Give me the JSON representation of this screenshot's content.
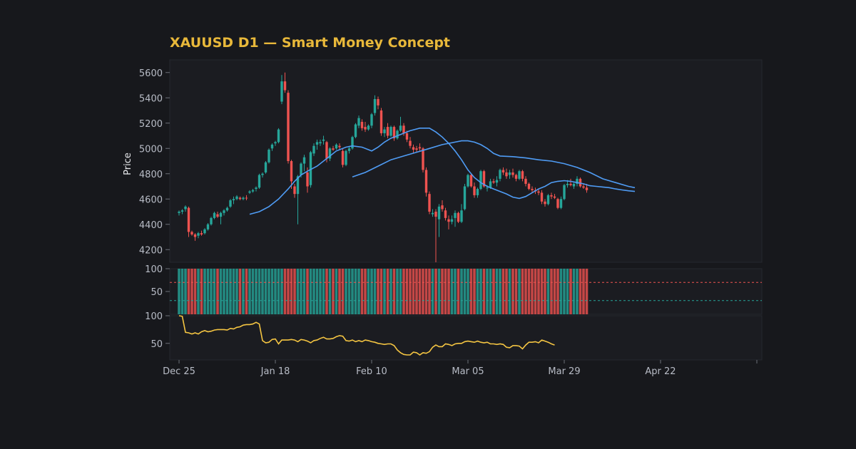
{
  "chart_data": {
    "type": "candlestick",
    "title": "XAUUSD D1 — Smart Money Concept",
    "ylabel": "Price",
    "title_color": "#e8b83a",
    "colors": {
      "background": "#17181c",
      "panel": "#1b1c21",
      "up": "#26a69a",
      "down": "#ef5350",
      "ma_line": "#4f9cf5",
      "oscillator": "#f5c542"
    },
    "x_tick_labels": [
      "Dec 25",
      "Jan 18",
      "Feb 10",
      "Mar 05",
      "Mar 29",
      "Apr 22"
    ],
    "price_panel": {
      "ylim": [
        4100,
        5700
      ],
      "yticks": [
        4200,
        4400,
        4600,
        4800,
        5000,
        5200,
        5400,
        5600
      ],
      "candles_ohlc": [
        [
          4490,
          4510,
          4470,
          4500
        ],
        [
          4500,
          4520,
          4480,
          4510
        ],
        [
          4520,
          4550,
          4500,
          4540
        ],
        [
          4530,
          4540,
          4300,
          4340
        ],
        [
          4340,
          4350,
          4310,
          4320
        ],
        [
          4320,
          4330,
          4270,
          4300
        ],
        [
          4310,
          4340,
          4290,
          4330
        ],
        [
          4330,
          4350,
          4310,
          4320
        ],
        [
          4330,
          4370,
          4320,
          4360
        ],
        [
          4360,
          4410,
          4350,
          4400
        ],
        [
          4400,
          4460,
          4390,
          4450
        ],
        [
          4450,
          4500,
          4440,
          4490
        ],
        [
          4480,
          4500,
          4450,
          4460
        ],
        [
          4460,
          4500,
          4400,
          4490
        ],
        [
          4490,
          4520,
          4470,
          4510
        ],
        [
          4510,
          4540,
          4500,
          4530
        ],
        [
          4540,
          4600,
          4530,
          4590
        ],
        [
          4590,
          4620,
          4560,
          4600
        ],
        [
          4600,
          4630,
          4590,
          4620
        ],
        [
          4610,
          4620,
          4590,
          4600
        ],
        [
          4600,
          4620,
          4590,
          4610
        ],
        [
          4610,
          4630,
          4590,
          4605
        ],
        [
          4650,
          4670,
          4640,
          4660
        ],
        [
          4660,
          4680,
          4650,
          4670
        ],
        [
          4680,
          4700,
          4660,
          4690
        ],
        [
          4690,
          4800,
          4680,
          4790
        ],
        [
          4790,
          4810,
          4770,
          4800
        ],
        [
          4810,
          4900,
          4800,
          4890
        ],
        [
          4890,
          5000,
          4880,
          4990
        ],
        [
          5000,
          5040,
          4980,
          5030
        ],
        [
          5040,
          5060,
          5020,
          5050
        ],
        [
          5050,
          5160,
          5040,
          5150
        ],
        [
          5370,
          5580,
          5350,
          5530
        ],
        [
          5530,
          5600,
          5440,
          5460
        ],
        [
          5440,
          5460,
          4880,
          4900
        ],
        [
          4900,
          4910,
          4680,
          4740
        ],
        [
          4700,
          4720,
          4610,
          4640
        ],
        [
          4640,
          4790,
          4400,
          4780
        ],
        [
          4790,
          4890,
          4770,
          4880
        ],
        [
          4880,
          4950,
          4820,
          4930
        ],
        [
          4810,
          4850,
          4650,
          4700
        ],
        [
          4710,
          4980,
          4690,
          4970
        ],
        [
          4960,
          5040,
          4940,
          5020
        ],
        [
          5030,
          5070,
          4990,
          5050
        ],
        [
          5040,
          5070,
          5020,
          5050
        ],
        [
          5060,
          5100,
          5030,
          5070
        ],
        [
          5050,
          5060,
          4890,
          4920
        ],
        [
          4920,
          5010,
          4900,
          5000
        ],
        [
          5000,
          5020,
          4980,
          4990
        ],
        [
          5000,
          5040,
          4990,
          5030
        ],
        [
          5020,
          5040,
          4990,
          5010
        ],
        [
          4980,
          5000,
          4850,
          4870
        ],
        [
          4870,
          4990,
          4860,
          4980
        ],
        [
          4980,
          5020,
          4960,
          5000
        ],
        [
          5000,
          5100,
          4990,
          5090
        ],
        [
          5090,
          5200,
          5080,
          5190
        ],
        [
          5180,
          5260,
          5160,
          5240
        ],
        [
          5210,
          5230,
          5140,
          5160
        ],
        [
          5170,
          5210,
          5130,
          5150
        ],
        [
          5150,
          5190,
          5140,
          5180
        ],
        [
          5180,
          5280,
          5160,
          5270
        ],
        [
          5280,
          5420,
          5260,
          5390
        ],
        [
          5390,
          5410,
          5310,
          5340
        ],
        [
          5300,
          5320,
          5100,
          5120
        ],
        [
          5120,
          5170,
          5090,
          5150
        ],
        [
          5170,
          5200,
          5080,
          5100
        ],
        [
          5100,
          5180,
          5090,
          5170
        ],
        [
          5170,
          5180,
          5060,
          5080
        ],
        [
          5080,
          5150,
          5070,
          5140
        ],
        [
          5140,
          5250,
          5130,
          5180
        ],
        [
          5180,
          5200,
          5100,
          5120
        ],
        [
          5120,
          5140,
          5050,
          5070
        ],
        [
          5060,
          5090,
          5000,
          5020
        ],
        [
          5010,
          5030,
          4960,
          4990
        ],
        [
          5000,
          5020,
          4970,
          4990
        ],
        [
          5010,
          5040,
          4980,
          5000
        ],
        [
          5000,
          5010,
          4810,
          4830
        ],
        [
          4830,
          4850,
          4620,
          4650
        ],
        [
          4640,
          4660,
          4480,
          4500
        ],
        [
          4480,
          4520,
          4460,
          4490
        ],
        [
          4500,
          4520,
          4100,
          4460
        ],
        [
          4440,
          4560,
          4300,
          4540
        ],
        [
          4550,
          4590,
          4500,
          4520
        ],
        [
          4510,
          4530,
          4430,
          4450
        ],
        [
          4440,
          4470,
          4360,
          4420
        ],
        [
          4420,
          4470,
          4400,
          4440
        ],
        [
          4450,
          4510,
          4380,
          4490
        ],
        [
          4490,
          4500,
          4410,
          4420
        ],
        [
          4420,
          4560,
          4410,
          4510
        ],
        [
          4520,
          4720,
          4510,
          4700
        ],
        [
          4700,
          4800,
          4690,
          4790
        ],
        [
          4790,
          4800,
          4690,
          4700
        ],
        [
          4700,
          4730,
          4610,
          4630
        ],
        [
          4630,
          4690,
          4610,
          4680
        ],
        [
          4680,
          4830,
          4670,
          4820
        ],
        [
          4820,
          4830,
          4690,
          4700
        ],
        [
          4690,
          4710,
          4660,
          4690
        ],
        [
          4690,
          4760,
          4680,
          4740
        ],
        [
          4740,
          4760,
          4720,
          4730
        ],
        [
          4730,
          4780,
          4700,
          4750
        ],
        [
          4760,
          4840,
          4740,
          4830
        ],
        [
          4830,
          4850,
          4790,
          4810
        ],
        [
          4810,
          4840,
          4760,
          4780
        ],
        [
          4790,
          4830,
          4760,
          4810
        ],
        [
          4810,
          4840,
          4770,
          4790
        ],
        [
          4790,
          4800,
          4740,
          4760
        ],
        [
          4760,
          4830,
          4750,
          4820
        ],
        [
          4820,
          4830,
          4740,
          4760
        ],
        [
          4760,
          4780,
          4700,
          4720
        ],
        [
          4720,
          4730,
          4670,
          4680
        ],
        [
          4680,
          4700,
          4650,
          4670
        ],
        [
          4670,
          4690,
          4640,
          4660
        ],
        [
          4660,
          4680,
          4630,
          4650
        ],
        [
          4650,
          4670,
          4560,
          4580
        ],
        [
          4580,
          4600,
          4540,
          4560
        ],
        [
          4560,
          4640,
          4550,
          4630
        ],
        [
          4630,
          4650,
          4600,
          4620
        ],
        [
          4620,
          4640,
          4600,
          4610
        ],
        [
          4600,
          4610,
          4520,
          4530
        ],
        [
          4530,
          4620,
          4520,
          4600
        ],
        [
          4600,
          4720,
          4590,
          4710
        ],
        [
          4710,
          4750,
          4690,
          4720
        ],
        [
          4720,
          4760,
          4700,
          4710
        ],
        [
          4700,
          4730,
          4680,
          4720
        ],
        [
          4720,
          4780,
          4700,
          4760
        ],
        [
          4760,
          4770,
          4690,
          4700
        ],
        [
          4700,
          4720,
          4680,
          4690
        ],
        [
          4690,
          4720,
          4650,
          4670
        ]
      ],
      "ma_slow": [
        [
          22,
          4480
        ],
        [
          25,
          4500
        ],
        [
          28,
          4540
        ],
        [
          31,
          4600
        ],
        [
          34,
          4680
        ],
        [
          36,
          4740
        ],
        [
          38,
          4790
        ],
        [
          40,
          4820
        ],
        [
          43,
          4860
        ],
        [
          46,
          4920
        ],
        [
          49,
          4980
        ],
        [
          52,
          5010
        ],
        [
          54,
          5020
        ],
        [
          57,
          5010
        ],
        [
          59,
          4990
        ],
        [
          60,
          4980
        ],
        [
          62,
          5010
        ],
        [
          64,
          5050
        ],
        [
          66,
          5080
        ],
        [
          69,
          5110
        ],
        [
          72,
          5140
        ],
        [
          75,
          5160
        ],
        [
          78,
          5160
        ],
        [
          80,
          5130
        ],
        [
          82,
          5090
        ],
        [
          84,
          5040
        ],
        [
          86,
          4980
        ],
        [
          88,
          4910
        ],
        [
          90,
          4830
        ],
        [
          92,
          4770
        ],
        [
          94,
          4730
        ],
        [
          96,
          4700
        ],
        [
          98,
          4680
        ],
        [
          100,
          4660
        ],
        [
          102,
          4640
        ],
        [
          104,
          4615
        ],
        [
          106,
          4605
        ],
        [
          108,
          4620
        ],
        [
          110,
          4650
        ],
        [
          112,
          4680
        ],
        [
          114,
          4700
        ],
        [
          116,
          4730
        ],
        [
          118,
          4740
        ],
        [
          120,
          4745
        ],
        [
          122,
          4740
        ],
        [
          124,
          4730
        ],
        [
          126,
          4720
        ],
        [
          128,
          4705
        ],
        [
          130,
          4700
        ],
        [
          132,
          4695
        ],
        [
          134,
          4690
        ],
        [
          136,
          4680
        ],
        [
          138,
          4672
        ],
        [
          140,
          4665
        ],
        [
          142,
          4660
        ]
      ],
      "ma_fast": [
        [
          54,
          4775
        ],
        [
          58,
          4810
        ],
        [
          62,
          4860
        ],
        [
          66,
          4910
        ],
        [
          70,
          4940
        ],
        [
          74,
          4970
        ],
        [
          78,
          5000
        ],
        [
          82,
          5030
        ],
        [
          86,
          5050
        ],
        [
          88,
          5060
        ],
        [
          90,
          5060
        ],
        [
          92,
          5050
        ],
        [
          94,
          5030
        ],
        [
          96,
          5000
        ],
        [
          98,
          4960
        ],
        [
          100,
          4940
        ],
        [
          104,
          4935
        ],
        [
          108,
          4925
        ],
        [
          112,
          4910
        ],
        [
          116,
          4900
        ],
        [
          120,
          4880
        ],
        [
          124,
          4850
        ],
        [
          128,
          4810
        ],
        [
          132,
          4760
        ],
        [
          136,
          4730
        ],
        [
          140,
          4700
        ],
        [
          142,
          4690
        ]
      ]
    },
    "bar_panel": {
      "ylim": [
        0,
        100
      ],
      "yticks": [
        50,
        100
      ],
      "reference_levels": [
        70,
        30
      ]
    },
    "oscillator_panel": {
      "ylim": [
        20,
        100
      ],
      "yticks": [
        50,
        100
      ],
      "values": [
        100,
        99,
        70,
        69,
        67,
        69,
        67,
        71,
        73,
        71,
        72,
        74,
        75,
        75,
        75,
        74,
        77,
        76,
        79,
        80,
        83,
        84,
        84,
        85,
        88,
        85,
        55,
        51,
        52,
        57,
        58,
        49,
        56,
        56,
        56,
        57,
        56,
        53,
        57,
        56,
        54,
        51,
        55,
        56,
        59,
        61,
        58,
        58,
        59,
        62,
        64,
        63,
        55,
        54,
        56,
        53,
        55,
        53,
        56,
        55,
        53,
        52,
        50,
        49,
        48,
        49,
        49,
        46,
        38,
        33,
        30,
        29,
        29,
        34,
        33,
        29,
        33,
        32,
        35,
        43,
        47,
        44,
        44,
        49,
        48,
        46,
        49,
        50,
        50,
        53,
        54,
        53,
        52,
        54,
        52,
        51,
        52,
        49,
        49,
        48,
        49,
        48,
        43,
        42,
        46,
        46,
        45,
        40,
        47,
        52,
        52,
        53,
        51,
        56,
        54,
        52,
        49,
        47
      ]
    }
  }
}
